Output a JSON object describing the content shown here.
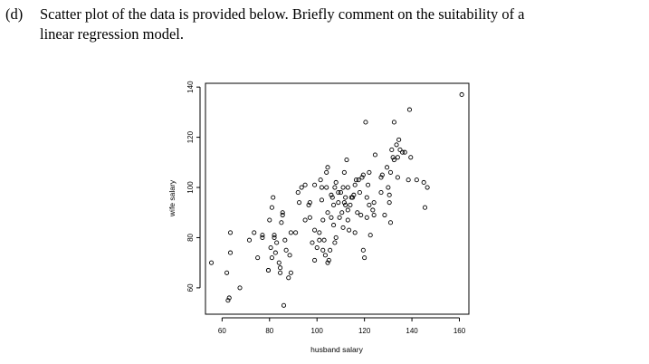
{
  "question": {
    "label": "(d)",
    "line1": "Scatter plot of the data is provided below. Briefly comment on the suitability of a",
    "line2": "linear regression model."
  },
  "chart_data": {
    "type": "scatter",
    "title": "",
    "xlabel": "husband salary",
    "ylabel": "wife salary",
    "xlim": [
      53,
      164
    ],
    "ylim": [
      49.5,
      141.5
    ],
    "xticks": [
      60,
      80,
      100,
      120,
      140,
      160
    ],
    "yticks": [
      60,
      80,
      100,
      120,
      140
    ],
    "grid": false,
    "point_color": "#000000",
    "points": [
      [
        55.5,
        70
      ],
      [
        62,
        66
      ],
      [
        62.5,
        55
      ],
      [
        63,
        56
      ],
      [
        63.5,
        82
      ],
      [
        63.5,
        74
      ],
      [
        67.5,
        60
      ],
      [
        71.5,
        79
      ],
      [
        73.5,
        82
      ],
      [
        75,
        72
      ],
      [
        77,
        81
      ],
      [
        77,
        80
      ],
      [
        79.5,
        67
      ],
      [
        79.5,
        67
      ],
      [
        80,
        87
      ],
      [
        80.5,
        76
      ],
      [
        81,
        92
      ],
      [
        81,
        72
      ],
      [
        81.5,
        96
      ],
      [
        82,
        80
      ],
      [
        82,
        81
      ],
      [
        82.5,
        74
      ],
      [
        83,
        78
      ],
      [
        84,
        70
      ],
      [
        84.5,
        68
      ],
      [
        84.5,
        66
      ],
      [
        85,
        86
      ],
      [
        85.5,
        90
      ],
      [
        85.5,
        89
      ],
      [
        86,
        53
      ],
      [
        86.5,
        79
      ],
      [
        87,
        75
      ],
      [
        88,
        64
      ],
      [
        88.5,
        73
      ],
      [
        89,
        66
      ],
      [
        89,
        82
      ],
      [
        91,
        82
      ],
      [
        92,
        98
      ],
      [
        92.5,
        94
      ],
      [
        93.5,
        100
      ],
      [
        95,
        87
      ],
      [
        95,
        101
      ],
      [
        96.5,
        93
      ],
      [
        97,
        94
      ],
      [
        97,
        88
      ],
      [
        98,
        78
      ],
      [
        99,
        71
      ],
      [
        99,
        83
      ],
      [
        99,
        101
      ],
      [
        100,
        76
      ],
      [
        101,
        82
      ],
      [
        101,
        79
      ],
      [
        101.5,
        103
      ],
      [
        102,
        100
      ],
      [
        102,
        95
      ],
      [
        102.5,
        87
      ],
      [
        102.5,
        75
      ],
      [
        103,
        79
      ],
      [
        103.5,
        73
      ],
      [
        104,
        100
      ],
      [
        104,
        106
      ],
      [
        104.5,
        70
      ],
      [
        104.5,
        90
      ],
      [
        104.5,
        108
      ],
      [
        105,
        71
      ],
      [
        105.5,
        75
      ],
      [
        106,
        97
      ],
      [
        106,
        88
      ],
      [
        106.5,
        96
      ],
      [
        107,
        85
      ],
      [
        107,
        93
      ],
      [
        107.5,
        78
      ],
      [
        107.5,
        100
      ],
      [
        108,
        102
      ],
      [
        108,
        80
      ],
      [
        109,
        98
      ],
      [
        109,
        94
      ],
      [
        109.5,
        88
      ],
      [
        110,
        98
      ],
      [
        110.5,
        90
      ],
      [
        111,
        84
      ],
      [
        111,
        100
      ],
      [
        111.5,
        94
      ],
      [
        111.5,
        106
      ],
      [
        112,
        96
      ],
      [
        112,
        93
      ],
      [
        112.5,
        111
      ],
      [
        113,
        100
      ],
      [
        113,
        87
      ],
      [
        113,
        91
      ],
      [
        113.5,
        83
      ],
      [
        114,
        93
      ],
      [
        114.5,
        96
      ],
      [
        115,
        96
      ],
      [
        115.5,
        97
      ],
      [
        116,
        101
      ],
      [
        116,
        82
      ],
      [
        116.5,
        103
      ],
      [
        117,
        90
      ],
      [
        117.5,
        103
      ],
      [
        118,
        98
      ],
      [
        118.5,
        89
      ],
      [
        119,
        104
      ],
      [
        119.5,
        105
      ],
      [
        119.5,
        75
      ],
      [
        120,
        72
      ],
      [
        120.5,
        126
      ],
      [
        121,
        96
      ],
      [
        121,
        88
      ],
      [
        121.5,
        101
      ],
      [
        122,
        106
      ],
      [
        122,
        93
      ],
      [
        122.5,
        81
      ],
      [
        123.5,
        91
      ],
      [
        124,
        94
      ],
      [
        124,
        89
      ],
      [
        124.5,
        113
      ],
      [
        127,
        98
      ],
      [
        127,
        104
      ],
      [
        127.5,
        105
      ],
      [
        128.5,
        89
      ],
      [
        129.5,
        108
      ],
      [
        130,
        100
      ],
      [
        130.5,
        97
      ],
      [
        130.5,
        94
      ],
      [
        131,
        86
      ],
      [
        131,
        106
      ],
      [
        131.5,
        115
      ],
      [
        132,
        112
      ],
      [
        132.5,
        111
      ],
      [
        132.5,
        126
      ],
      [
        133.5,
        117
      ],
      [
        134,
        104
      ],
      [
        134,
        112
      ],
      [
        134.5,
        119
      ],
      [
        135,
        115
      ],
      [
        136,
        114
      ],
      [
        137,
        114
      ],
      [
        138.5,
        103
      ],
      [
        139,
        131
      ],
      [
        139.5,
        112
      ],
      [
        142,
        103
      ],
      [
        145,
        102
      ],
      [
        145.5,
        92
      ],
      [
        146.5,
        100
      ],
      [
        161,
        137
      ]
    ]
  }
}
